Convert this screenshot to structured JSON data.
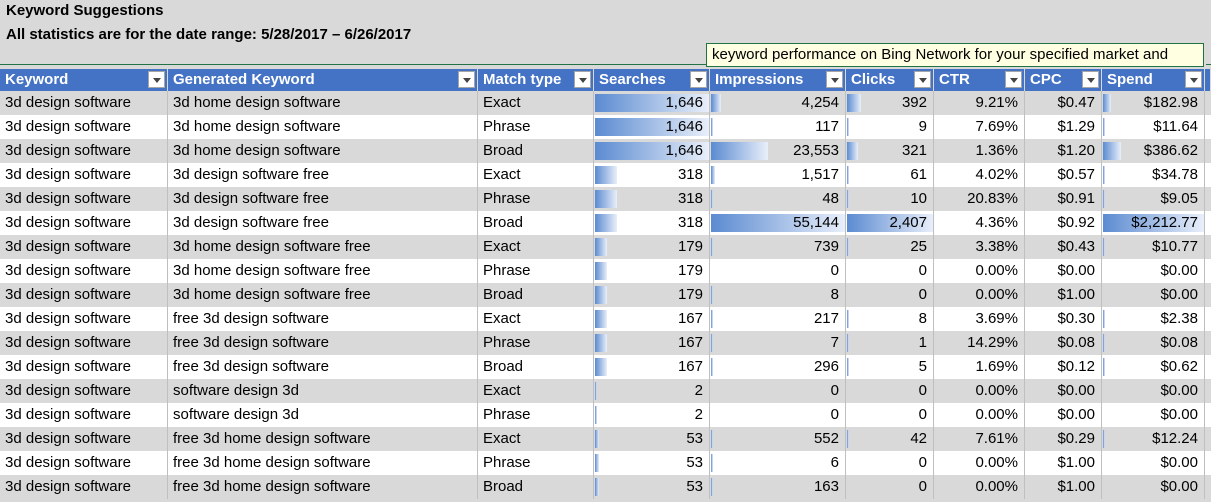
{
  "title": "Keyword Suggestions",
  "subtitle": "All statistics are for the date range: 5/28/2017 – 6/26/2017",
  "tooltip": "keyword performance on Bing Network for your specified market and",
  "columns": [
    "Keyword",
    "Generated Keyword",
    "Match type",
    "Searches",
    "Impressions",
    "Clicks",
    "CTR",
    "CPC",
    "Spend"
  ],
  "max": {
    "searches": 1646,
    "impressions": 55144,
    "clicks": 2407,
    "spend": 2212.77
  },
  "rows": [
    {
      "keyword": "3d design software",
      "generated": "3d home design software",
      "match": "Exact",
      "searches": "1,646",
      "searches_v": 1646,
      "impressions": "4,254",
      "impressions_v": 4254,
      "clicks": "392",
      "clicks_v": 392,
      "ctr": "9.21%",
      "cpc": "$0.47",
      "spend": "$182.98",
      "spend_v": 182.98
    },
    {
      "keyword": "3d design software",
      "generated": "3d home design software",
      "match": "Phrase",
      "searches": "1,646",
      "searches_v": 1646,
      "impressions": "117",
      "impressions_v": 117,
      "clicks": "9",
      "clicks_v": 9,
      "ctr": "7.69%",
      "cpc": "$1.29",
      "spend": "$11.64",
      "spend_v": 11.64
    },
    {
      "keyword": "3d design software",
      "generated": "3d home design software",
      "match": "Broad",
      "searches": "1,646",
      "searches_v": 1646,
      "impressions": "23,553",
      "impressions_v": 23553,
      "clicks": "321",
      "clicks_v": 321,
      "ctr": "1.36%",
      "cpc": "$1.20",
      "spend": "$386.62",
      "spend_v": 386.62
    },
    {
      "keyword": "3d design software",
      "generated": "3d design software free",
      "match": "Exact",
      "searches": "318",
      "searches_v": 318,
      "impressions": "1,517",
      "impressions_v": 1517,
      "clicks": "61",
      "clicks_v": 61,
      "ctr": "4.02%",
      "cpc": "$0.57",
      "spend": "$34.78",
      "spend_v": 34.78
    },
    {
      "keyword": "3d design software",
      "generated": "3d design software free",
      "match": "Phrase",
      "searches": "318",
      "searches_v": 318,
      "impressions": "48",
      "impressions_v": 48,
      "clicks": "10",
      "clicks_v": 10,
      "ctr": "20.83%",
      "cpc": "$0.91",
      "spend": "$9.05",
      "spend_v": 9.05
    },
    {
      "keyword": "3d design software",
      "generated": "3d design software free",
      "match": "Broad",
      "searches": "318",
      "searches_v": 318,
      "impressions": "55,144",
      "impressions_v": 55144,
      "clicks": "2,407",
      "clicks_v": 2407,
      "ctr": "4.36%",
      "cpc": "$0.92",
      "spend": "$2,212.77",
      "spend_v": 2212.77
    },
    {
      "keyword": "3d design software",
      "generated": "3d home design software free",
      "match": "Exact",
      "searches": "179",
      "searches_v": 179,
      "impressions": "739",
      "impressions_v": 739,
      "clicks": "25",
      "clicks_v": 25,
      "ctr": "3.38%",
      "cpc": "$0.43",
      "spend": "$10.77",
      "spend_v": 10.77
    },
    {
      "keyword": "3d design software",
      "generated": "3d home design software free",
      "match": "Phrase",
      "searches": "179",
      "searches_v": 179,
      "impressions": "0",
      "impressions_v": 0,
      "clicks": "0",
      "clicks_v": 0,
      "ctr": "0.00%",
      "cpc": "$0.00",
      "spend": "$0.00",
      "spend_v": 0
    },
    {
      "keyword": "3d design software",
      "generated": "3d home design software free",
      "match": "Broad",
      "searches": "179",
      "searches_v": 179,
      "impressions": "8",
      "impressions_v": 8,
      "clicks": "0",
      "clicks_v": 0,
      "ctr": "0.00%",
      "cpc": "$1.00",
      "spend": "$0.00",
      "spend_v": 0
    },
    {
      "keyword": "3d design software",
      "generated": "free 3d design software",
      "match": "Exact",
      "searches": "167",
      "searches_v": 167,
      "impressions": "217",
      "impressions_v": 217,
      "clicks": "8",
      "clicks_v": 8,
      "ctr": "3.69%",
      "cpc": "$0.30",
      "spend": "$2.38",
      "spend_v": 2.38
    },
    {
      "keyword": "3d design software",
      "generated": "free 3d design software",
      "match": "Phrase",
      "searches": "167",
      "searches_v": 167,
      "impressions": "7",
      "impressions_v": 7,
      "clicks": "1",
      "clicks_v": 1,
      "ctr": "14.29%",
      "cpc": "$0.08",
      "spend": "$0.08",
      "spend_v": 0.08
    },
    {
      "keyword": "3d design software",
      "generated": "free 3d design software",
      "match": "Broad",
      "searches": "167",
      "searches_v": 167,
      "impressions": "296",
      "impressions_v": 296,
      "clicks": "5",
      "clicks_v": 5,
      "ctr": "1.69%",
      "cpc": "$0.12",
      "spend": "$0.62",
      "spend_v": 0.62
    },
    {
      "keyword": "3d design software",
      "generated": "software design 3d",
      "match": "Exact",
      "searches": "2",
      "searches_v": 2,
      "impressions": "0",
      "impressions_v": 0,
      "clicks": "0",
      "clicks_v": 0,
      "ctr": "0.00%",
      "cpc": "$0.00",
      "spend": "$0.00",
      "spend_v": 0
    },
    {
      "keyword": "3d design software",
      "generated": "software design 3d",
      "match": "Phrase",
      "searches": "2",
      "searches_v": 2,
      "impressions": "0",
      "impressions_v": 0,
      "clicks": "0",
      "clicks_v": 0,
      "ctr": "0.00%",
      "cpc": "$0.00",
      "spend": "$0.00",
      "spend_v": 0
    },
    {
      "keyword": "3d design software",
      "generated": "free 3d home design software",
      "match": "Exact",
      "searches": "53",
      "searches_v": 53,
      "impressions": "552",
      "impressions_v": 552,
      "clicks": "42",
      "clicks_v": 42,
      "ctr": "7.61%",
      "cpc": "$0.29",
      "spend": "$12.24",
      "spend_v": 12.24
    },
    {
      "keyword": "3d design software",
      "generated": "free 3d home design software",
      "match": "Phrase",
      "searches": "53",
      "searches_v": 53,
      "impressions": "6",
      "impressions_v": 6,
      "clicks": "0",
      "clicks_v": 0,
      "ctr": "0.00%",
      "cpc": "$1.00",
      "spend": "$0.00",
      "spend_v": 0
    },
    {
      "keyword": "3d design software",
      "generated": "free 3d home design software",
      "match": "Broad",
      "searches": "53",
      "searches_v": 53,
      "impressions": "163",
      "impressions_v": 163,
      "clicks": "0",
      "clicks_v": 0,
      "ctr": "0.00%",
      "cpc": "$1.00",
      "spend": "$0.00",
      "spend_v": 0
    }
  ]
}
